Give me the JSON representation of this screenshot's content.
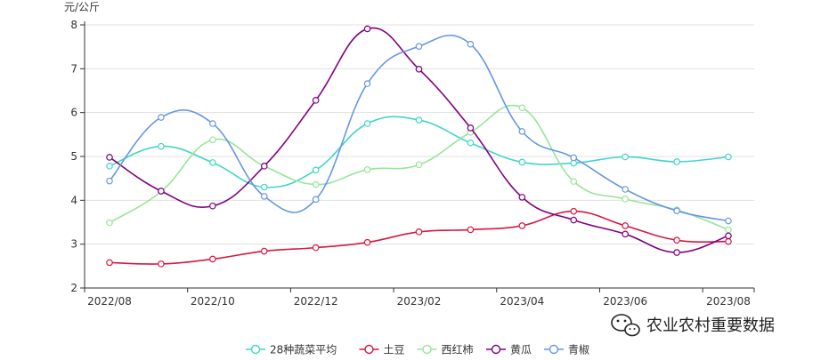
{
  "chart_data": {
    "type": "line",
    "ylabel": "元/公斤",
    "ylim": [
      2,
      8
    ],
    "yticks": [
      2,
      3,
      4,
      5,
      6,
      7,
      8
    ],
    "x": [
      "2022/08",
      "2022/09",
      "2022/10",
      "2022/11",
      "2022/12",
      "2023/01",
      "2023/02",
      "2023/03",
      "2023/04",
      "2023/05",
      "2023/06",
      "2023/07",
      "2023/08"
    ],
    "xtick_labels": [
      "2022/08",
      "2022/10",
      "2022/12",
      "2023/02",
      "2023/04",
      "2023/06",
      "2023/08"
    ],
    "grid": "horizontal",
    "legend_position": "bottom",
    "series": [
      {
        "name": "28种蔬菜平均",
        "color": "#40d6c8",
        "values": [
          4.78,
          5.23,
          4.86,
          4.3,
          4.69,
          5.75,
          5.83,
          5.31,
          4.87,
          4.85,
          4.99,
          4.88,
          4.99
        ]
      },
      {
        "name": "土豆",
        "color": "#d8173f",
        "values": [
          2.58,
          2.55,
          2.66,
          2.84,
          2.92,
          3.04,
          3.28,
          3.33,
          3.42,
          3.75,
          3.42,
          3.09,
          3.06
        ]
      },
      {
        "name": "西红柿",
        "color": "#98e598",
        "values": [
          3.49,
          4.2,
          5.38,
          4.78,
          4.36,
          4.7,
          4.81,
          5.55,
          6.11,
          4.43,
          4.03,
          3.78,
          3.33
        ]
      },
      {
        "name": "黄瓜",
        "color": "#800080",
        "values": [
          4.98,
          4.21,
          3.87,
          4.78,
          6.28,
          7.91,
          6.99,
          5.65,
          4.07,
          3.55,
          3.23,
          2.81,
          3.19
        ]
      },
      {
        "name": "青椒",
        "color": "#6697e4",
        "values": [
          4.44,
          5.89,
          5.75,
          4.09,
          4.02,
          6.66,
          7.51,
          7.56,
          5.57,
          4.97,
          4.25,
          3.76,
          3.53
        ]
      }
    ]
  },
  "watermark": {
    "text": "农业农村重要数据",
    "icon": "wechat-icon"
  }
}
